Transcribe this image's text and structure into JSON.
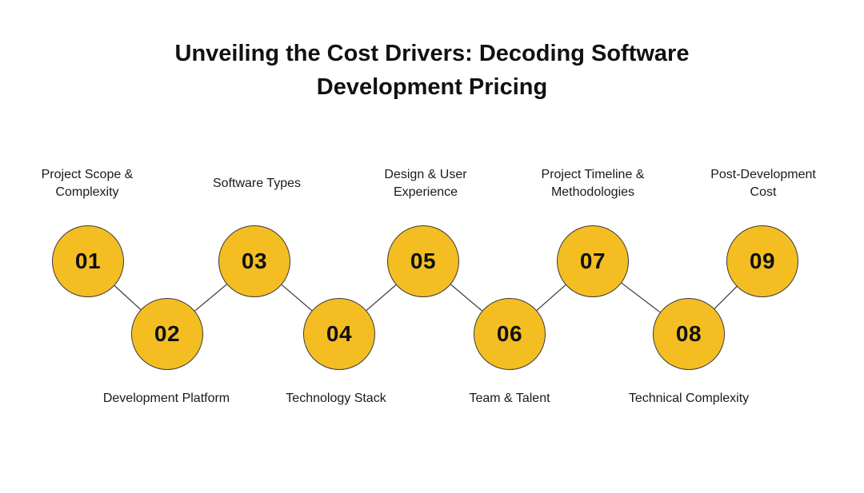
{
  "title": {
    "line1": "Unveiling the Cost Drivers: Decoding Software",
    "line2": "Development Pricing"
  },
  "colors": {
    "node_fill": "#F4BE23",
    "node_stroke": "#3a3a3a",
    "connector": "#3a3a3a",
    "text": "#111111"
  },
  "steps": [
    {
      "number": "01",
      "label": [
        "Project Scope &",
        "Complexity"
      ]
    },
    {
      "number": "02",
      "label": [
        "Development Platform"
      ]
    },
    {
      "number": "03",
      "label": [
        "Software Types"
      ]
    },
    {
      "number": "04",
      "label": [
        "Technology Stack"
      ]
    },
    {
      "number": "05",
      "label": [
        "Design & User",
        "Experience"
      ]
    },
    {
      "number": "06",
      "label": [
        "Team & Talent"
      ]
    },
    {
      "number": "07",
      "label": [
        "Project Timeline &",
        "Methodologies"
      ]
    },
    {
      "number": "08",
      "label": [
        "Technical Complexity"
      ]
    },
    {
      "number": "09",
      "label": [
        "Post-Development",
        "Cost"
      ]
    }
  ]
}
